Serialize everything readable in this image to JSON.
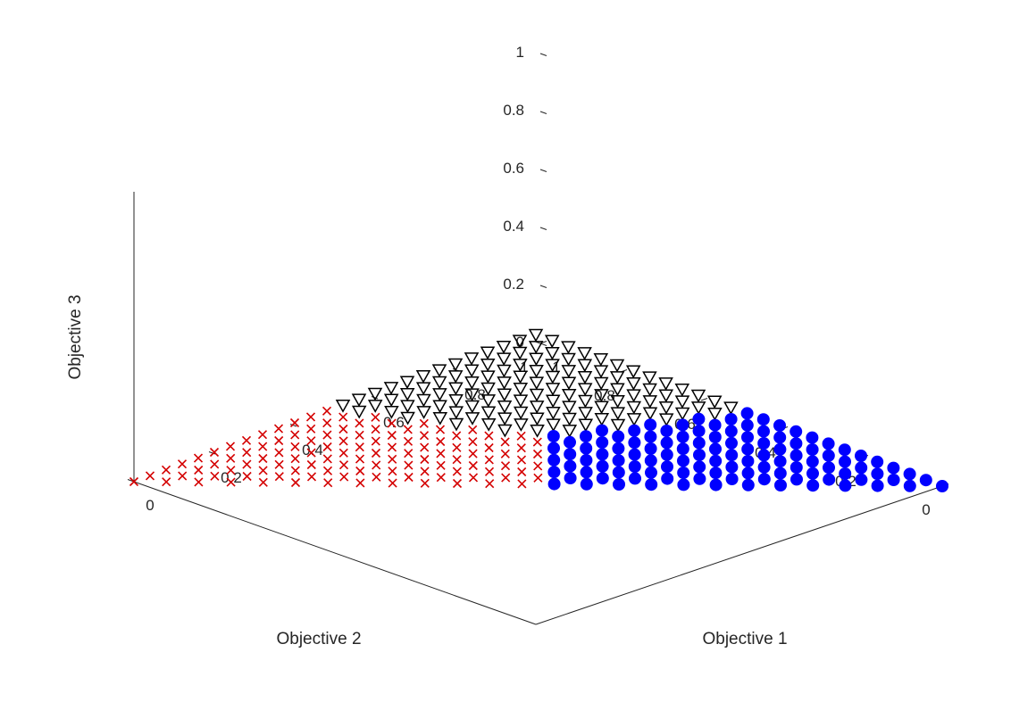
{
  "chart_data": {
    "type": "scatter",
    "dimensions": 3,
    "title": "",
    "xlabel": "Objective 1",
    "ylabel": "Objective 2",
    "zlabel": "Objective 3",
    "xlim": [
      0,
      1
    ],
    "ylim": [
      0,
      1
    ],
    "zlim": [
      0,
      1
    ],
    "x_ticks": [
      "0",
      "0.2",
      "0.4",
      "0.6",
      "0.8",
      "1"
    ],
    "y_ticks": [
      "0",
      "0.2",
      "0.4",
      "0.6",
      "0.8",
      "1"
    ],
    "z_ticks": [
      "0",
      "0.2",
      "0.4",
      "0.6",
      "0.8",
      "1"
    ],
    "grid": false,
    "point_set": "simplex lattice: Objective 1 + Objective 2 + Objective 3 = 1, step 0.04 (all 351 points)",
    "lattice_step": 0.04,
    "series": [
      {
        "marker": "circle-filled",
        "color": "#0000ff",
        "rule": "points where Objective 1 is the largest value"
      },
      {
        "marker": "x",
        "color": "#d40000",
        "rule": "points where Objective 2 is the largest value (ties with Objective 1 included)"
      },
      {
        "marker": "triangle-down-open",
        "color": "#000000",
        "rule": "points where Objective 3 is the largest value (ties with Objective 1 or 2 included)"
      }
    ]
  }
}
